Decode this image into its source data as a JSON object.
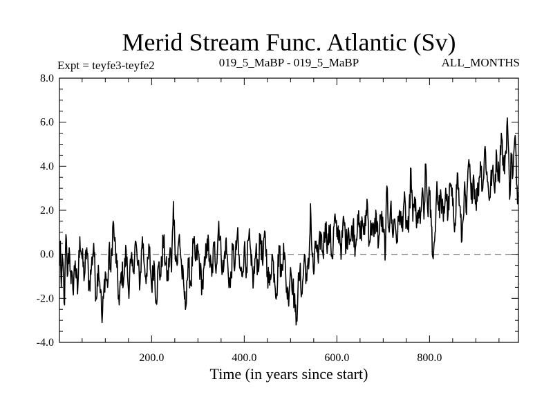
{
  "chart_data": {
    "type": "line",
    "title": "Merid Stream Func. Atlantic (Sv)",
    "subtitle_left": "Expt = teyfe3-teyfe2",
    "subtitle_center": "019_5_MaBP - 019_5_MaBP",
    "subtitle_right": "ALL_MONTHS",
    "xlabel": "Time (in years since start)",
    "ylabel": "",
    "xlim": [
      1,
      992
    ],
    "ylim": [
      -4.0,
      8.0
    ],
    "x_ticks": [
      200,
      400,
      600,
      800
    ],
    "x_tick_labels": [
      "200.0",
      "400.0",
      "600.0",
      "800.0"
    ],
    "y_ticks": [
      -4,
      -2,
      0,
      2,
      4,
      6,
      8
    ],
    "y_tick_labels": [
      "-4.0",
      "-2.0",
      "0.0",
      "2.0",
      "4.0",
      "6.0",
      "8.0"
    ],
    "reference_line": {
      "y": 0.0,
      "style": "dashed",
      "color": "#808080"
    },
    "series": [
      {
        "name": "teyfe3-teyfe2",
        "color": "#000000",
        "note": "annual series; values estimated by reading key points off the axes",
        "anchors": [
          [
            1,
            -0.5
          ],
          [
            3,
            0.6
          ],
          [
            5,
            -1.5
          ],
          [
            8,
            -0.2
          ],
          [
            12,
            -2.3
          ],
          [
            15,
            0.9
          ],
          [
            18,
            -1.0
          ],
          [
            22,
            0.3
          ],
          [
            25,
            -0.8
          ],
          [
            30,
            -1.6
          ],
          [
            35,
            -0.3
          ],
          [
            40,
            -1.8
          ],
          [
            45,
            0.8
          ],
          [
            50,
            -0.2
          ],
          [
            55,
            -1.0
          ],
          [
            60,
            0.3
          ],
          [
            65,
            -1.5
          ],
          [
            70,
            -0.6
          ],
          [
            75,
            0.5
          ],
          [
            80,
            -2.0
          ],
          [
            85,
            -0.5
          ],
          [
            90,
            -1.6
          ],
          [
            93,
            -3.1
          ],
          [
            96,
            -2.0
          ],
          [
            100,
            -0.8
          ],
          [
            105,
            -1.5
          ],
          [
            108,
            0.2
          ],
          [
            112,
            -0.8
          ],
          [
            117,
            1.5
          ],
          [
            120,
            0.6
          ],
          [
            125,
            -0.6
          ],
          [
            130,
            -2.3
          ],
          [
            135,
            -0.8
          ],
          [
            140,
            -1.1
          ],
          [
            145,
            0.2
          ],
          [
            150,
            -1.6
          ],
          [
            155,
            -0.4
          ],
          [
            160,
            -0.8
          ],
          [
            165,
            0.6
          ],
          [
            170,
            -0.5
          ],
          [
            175,
            -1.3
          ],
          [
            180,
            0.8
          ],
          [
            185,
            -0.6
          ],
          [
            190,
            -1.0
          ],
          [
            195,
            0.3
          ],
          [
            200,
            -1.5
          ],
          [
            205,
            -0.3
          ],
          [
            210,
            -2.1
          ],
          [
            215,
            -0.5
          ],
          [
            220,
            -1.0
          ],
          [
            225,
            0.7
          ],
          [
            230,
            -0.4
          ],
          [
            235,
            -1.2
          ],
          [
            240,
            0.3
          ],
          [
            243,
            -0.8
          ],
          [
            247,
            2.4
          ],
          [
            250,
            0.6
          ],
          [
            255,
            -0.5
          ],
          [
            260,
            0.9
          ],
          [
            265,
            -0.7
          ],
          [
            270,
            -1.6
          ],
          [
            273,
            -2.5
          ],
          [
            276,
            -1.2
          ],
          [
            280,
            -0.6
          ],
          [
            285,
            -1.4
          ],
          [
            290,
            0.5
          ],
          [
            295,
            -0.3
          ],
          [
            300,
            0.2
          ],
          [
            305,
            -0.8
          ],
          [
            310,
            -1.5
          ],
          [
            315,
            -0.5
          ],
          [
            320,
            0.7
          ],
          [
            325,
            -0.2
          ],
          [
            330,
            -1.0
          ],
          [
            335,
            0.4
          ],
          [
            340,
            -0.5
          ],
          [
            345,
            1.5
          ],
          [
            350,
            0.0
          ],
          [
            355,
            -0.8
          ],
          [
            360,
            0.6
          ],
          [
            365,
            -0.7
          ],
          [
            370,
            -1.5
          ],
          [
            375,
            0.2
          ],
          [
            380,
            -0.5
          ],
          [
            385,
            0.9
          ],
          [
            390,
            -0.6
          ],
          [
            395,
            -1.0
          ],
          [
            400,
            0.3
          ],
          [
            405,
            -0.6
          ],
          [
            410,
            0.8
          ],
          [
            415,
            -0.5
          ],
          [
            420,
            -1.2
          ],
          [
            425,
            0.1
          ],
          [
            430,
            -0.6
          ],
          [
            435,
            0.9
          ],
          [
            440,
            -0.5
          ],
          [
            445,
            1.0
          ],
          [
            450,
            -0.8
          ],
          [
            455,
            -1.4
          ],
          [
            460,
            0.0
          ],
          [
            465,
            -0.9
          ],
          [
            470,
            -1.8
          ],
          [
            475,
            0.4
          ],
          [
            480,
            -1.0
          ],
          [
            485,
            0.5
          ],
          [
            490,
            -1.2
          ],
          [
            495,
            -2.0
          ],
          [
            500,
            -0.6
          ],
          [
            505,
            -1.4
          ],
          [
            510,
            -2.6
          ],
          [
            513,
            -2.9
          ],
          [
            516,
            -1.6
          ],
          [
            520,
            -0.8
          ],
          [
            525,
            -1.8
          ],
          [
            530,
            0.0
          ],
          [
            535,
            -1.2
          ],
          [
            540,
            -0.3
          ],
          [
            543,
            2.3
          ],
          [
            546,
            0.2
          ],
          [
            550,
            -0.9
          ],
          [
            555,
            0.6
          ],
          [
            560,
            -0.4
          ],
          [
            565,
            1.0
          ],
          [
            570,
            0.0
          ],
          [
            575,
            1.4
          ],
          [
            580,
            0.5
          ],
          [
            585,
            1.0
          ],
          [
            590,
            -0.2
          ],
          [
            595,
            1.7
          ],
          [
            600,
            0.8
          ],
          [
            605,
            1.1
          ],
          [
            610,
            0.2
          ],
          [
            615,
            1.6
          ],
          [
            620,
            0.4
          ],
          [
            625,
            1.2
          ],
          [
            630,
            0.6
          ],
          [
            635,
            1.4
          ],
          [
            640,
            0.3
          ],
          [
            645,
            1.8
          ],
          [
            650,
            0.7
          ],
          [
            655,
            1.5
          ],
          [
            660,
            0.9
          ],
          [
            665,
            2.5
          ],
          [
            670,
            0.6
          ],
          [
            675,
            1.4
          ],
          [
            680,
            0.8
          ],
          [
            685,
            1.8
          ],
          [
            690,
            0.5
          ],
          [
            695,
            1.8
          ],
          [
            700,
            1.0
          ],
          [
            705,
            0.2
          ],
          [
            708,
            3.1
          ],
          [
            712,
            1.2
          ],
          [
            716,
            2.2
          ],
          [
            720,
            1.0
          ],
          [
            725,
            1.6
          ],
          [
            730,
            0.6
          ],
          [
            735,
            2.0
          ],
          [
            740,
            1.2
          ],
          [
            745,
            2.4
          ],
          [
            750,
            1.4
          ],
          [
            755,
            1.0
          ],
          [
            760,
            3.9
          ],
          [
            764,
            1.5
          ],
          [
            768,
            2.6
          ],
          [
            772,
            1.2
          ],
          [
            776,
            2.0
          ],
          [
            780,
            1.4
          ],
          [
            784,
            2.8
          ],
          [
            788,
            1.6
          ],
          [
            792,
            4.1
          ],
          [
            796,
            2.0
          ],
          [
            800,
            2.7
          ],
          [
            804,
            1.3
          ],
          [
            808,
            -0.2
          ],
          [
            812,
            1.0
          ],
          [
            816,
            3.3
          ],
          [
            820,
            2.0
          ],
          [
            825,
            2.6
          ],
          [
            830,
            1.5
          ],
          [
            835,
            3.0
          ],
          [
            840,
            1.8
          ],
          [
            845,
            3.2
          ],
          [
            850,
            2.2
          ],
          [
            855,
            1.4
          ],
          [
            860,
            3.7
          ],
          [
            865,
            2.2
          ],
          [
            870,
            0.6
          ],
          [
            875,
            2.9
          ],
          [
            880,
            1.8
          ],
          [
            885,
            4.3
          ],
          [
            890,
            2.5
          ],
          [
            895,
            3.6
          ],
          [
            900,
            2.4
          ],
          [
            905,
            2.9
          ],
          [
            910,
            4.2
          ],
          [
            915,
            3.0
          ],
          [
            920,
            4.9
          ],
          [
            925,
            3.3
          ],
          [
            930,
            2.6
          ],
          [
            935,
            3.8
          ],
          [
            940,
            3.0
          ],
          [
            945,
            4.5
          ],
          [
            950,
            3.5
          ],
          [
            955,
            5.5
          ],
          [
            960,
            3.8
          ],
          [
            965,
            4.7
          ],
          [
            968,
            6.2
          ],
          [
            970,
            5.0
          ],
          [
            973,
            2.5
          ],
          [
            976,
            4.6
          ],
          [
            980,
            3.6
          ],
          [
            985,
            5.4
          ],
          [
            988,
            3.2
          ],
          [
            992,
            2.6
          ]
        ]
      }
    ]
  }
}
